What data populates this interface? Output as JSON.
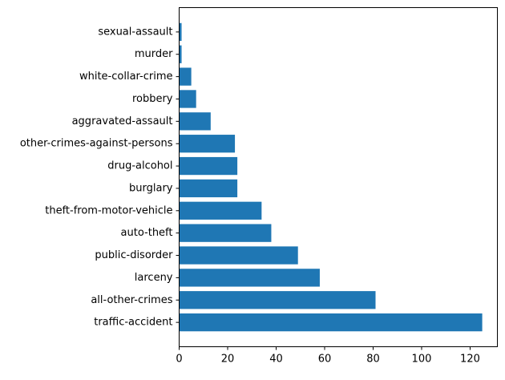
{
  "chart_data": {
    "type": "bar",
    "orientation": "horizontal",
    "title": "",
    "xlabel": "",
    "ylabel": "",
    "xlim": [
      0,
      131.25
    ],
    "xticks": [
      0,
      20,
      40,
      60,
      80,
      100,
      120
    ],
    "grid": false,
    "bar_color": "#1f77b4",
    "categories": [
      "traffic-accident",
      "all-other-crimes",
      "larceny",
      "public-disorder",
      "auto-theft",
      "theft-from-motor-vehicle",
      "burglary",
      "drug-alcohol",
      "other-crimes-against-persons",
      "aggravated-assault",
      "robbery",
      "white-collar-crime",
      "murder",
      "sexual-assault"
    ],
    "values": [
      125,
      81,
      58,
      49,
      38,
      34,
      24,
      24,
      23,
      13,
      7,
      5,
      1,
      1
    ]
  }
}
